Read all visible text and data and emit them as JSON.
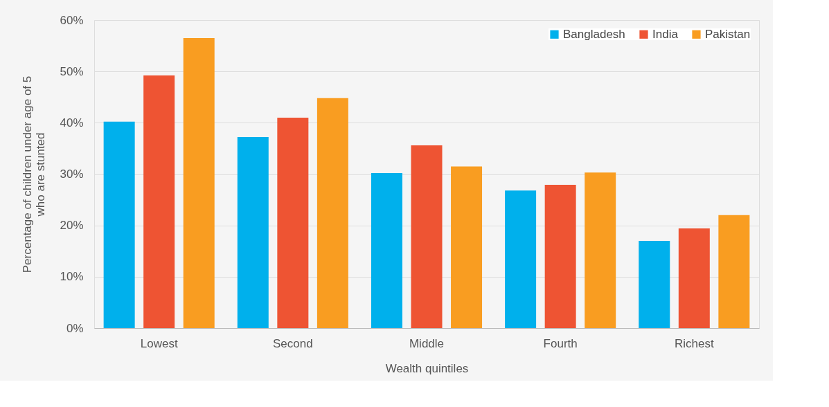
{
  "chart_data": {
    "type": "bar",
    "xlabel": "Wealth quintiles",
    "ylabel": "Percentage of children under age of 5 who are stunted",
    "categories": [
      "Lowest",
      "Second",
      "Middle",
      "Fourth",
      "Richest"
    ],
    "series": [
      {
        "name": "Bangladesh",
        "color": "#00b0ec",
        "values": [
          40.2,
          37.2,
          30.2,
          26.8,
          17.0
        ]
      },
      {
        "name": "India",
        "color": "#ee5433",
        "values": [
          49.2,
          41.0,
          35.6,
          27.9,
          19.4
        ]
      },
      {
        "name": "Pakistan",
        "color": "#f99d21",
        "values": [
          56.5,
          44.8,
          31.5,
          30.3,
          22.0
        ]
      }
    ],
    "ylim": [
      0,
      60
    ],
    "yticks": [
      {
        "value": 0,
        "label": "0%"
      },
      {
        "value": 10,
        "label": "10%"
      },
      {
        "value": 20,
        "label": "20%"
      },
      {
        "value": 30,
        "label": "30%"
      },
      {
        "value": 40,
        "label": "40%"
      },
      {
        "value": 50,
        "label": "50%"
      },
      {
        "value": 60,
        "label": "60%"
      }
    ],
    "grid": "y",
    "legend": "top right"
  }
}
